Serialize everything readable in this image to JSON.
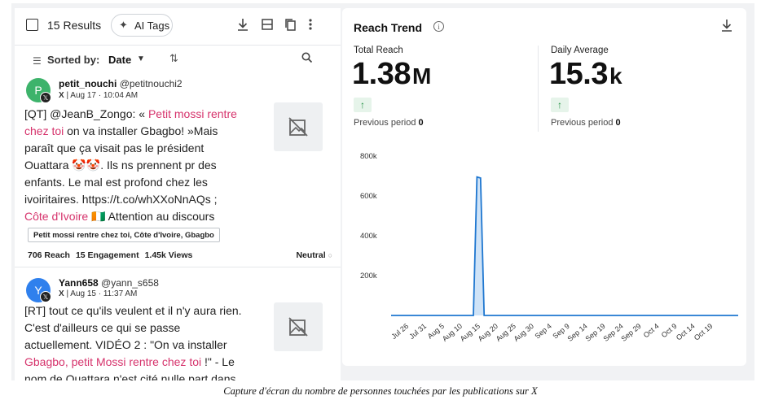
{
  "toolbar": {
    "results_label": "15 Results",
    "ai_tags_label": "AI Tags",
    "icons": [
      "download-icon",
      "layout-icon",
      "copy-icon",
      "more-vertical-icon"
    ]
  },
  "sort": {
    "label": "Sorted by:",
    "value": "Date"
  },
  "posts": [
    {
      "avatar_letter": "P",
      "avatar_color": "#3db36b",
      "username": "petit_nouchi",
      "handle": "@petitnouchi2",
      "platform": "X",
      "date": "Aug 17 · 10:04 AM",
      "text_lines": [
        [
          {
            "t": "[QT] @JeanB_Zongo: « "
          },
          {
            "t": "Petit mossi rentre",
            "hl": true
          }
        ],
        [
          {
            "t": "chez toi",
            "hl": true
          },
          {
            "t": " on va installer Gbagbo! »Mais"
          }
        ],
        [
          {
            "t": "paraît que ça visait pas le président"
          }
        ],
        [
          {
            "t": "Ouattara 🤡🤡. Ils ns prennent pr des"
          }
        ],
        [
          {
            "t": "enfants. Le mal est profond chez les"
          }
        ],
        [
          {
            "t": "ivoiritaires. https://t.co/whXXoNnAQs ;"
          }
        ],
        [
          {
            "t": "Côte d'Ivoire",
            "hl": true
          },
          {
            "t": " 🇨🇮 Attention au discours"
          }
        ]
      ],
      "tags": "Petit mossi rentre chez toi, Côte d'Ivoire, Gbagbo",
      "reach": "706 Reach",
      "engagement": "15 Engagement",
      "views": "1.45k Views",
      "sentiment": "Neutral"
    },
    {
      "avatar_letter": "Y",
      "avatar_color": "#2f80ed",
      "username": "Yann658",
      "handle": "@yann_s658",
      "platform": "X",
      "date": "Aug 15 · 11:37 AM",
      "text_lines": [
        [
          {
            "t": "[RT] tout ce qu'ils veulent et il n'y aura rien."
          }
        ],
        [
          {
            "t": "C'est d'ailleurs ce qui se passe"
          }
        ],
        [
          {
            "t": "actuellement. VIDÉO 2 : \"On va installer"
          }
        ],
        [
          {
            "t": "Gbagbo, petit Mossi rentre chez toi",
            "hl": true
          },
          {
            "t": " !\" - Le"
          }
        ],
        [
          {
            "t": "nom de Ouattara n'est cité nulle part dans"
          }
        ]
      ]
    }
  ],
  "reach_trend": {
    "title": "Reach Trend",
    "total_label": "Total Reach",
    "total_value": "1.38",
    "total_unit": "M",
    "daily_label": "Daily Average",
    "daily_value": "15.3",
    "daily_unit": "k",
    "previous_text": "Previous period",
    "previous_total": "0",
    "previous_daily": "0"
  },
  "chart_data": {
    "type": "area",
    "x_ticks": [
      "Jul 26",
      "Jul 31",
      "Aug 5",
      "Aug 10",
      "Aug 15",
      "Aug 20",
      "Aug 25",
      "Aug 30",
      "Sep 4",
      "Sep 9",
      "Sep 14",
      "Sep 19",
      "Sep 24",
      "Sep 29",
      "Oct 4",
      "Oct 9",
      "Oct 14",
      "Oct 19"
    ],
    "y_ticks": [
      "800k",
      "600k",
      "400k",
      "200k"
    ],
    "ylim": [
      0,
      800000
    ],
    "x": [
      "2024-07-21",
      "2024-08-13",
      "2024-08-14",
      "2024-08-15",
      "2024-08-16",
      "2024-10-26"
    ],
    "values": [
      0,
      0,
      695000,
      690000,
      0,
      0
    ],
    "line_color": "#1f77d0",
    "fill_color": "#cfe3f7"
  },
  "caption": "Capture d'écran du nombre de personnes touchées par les publications sur X"
}
